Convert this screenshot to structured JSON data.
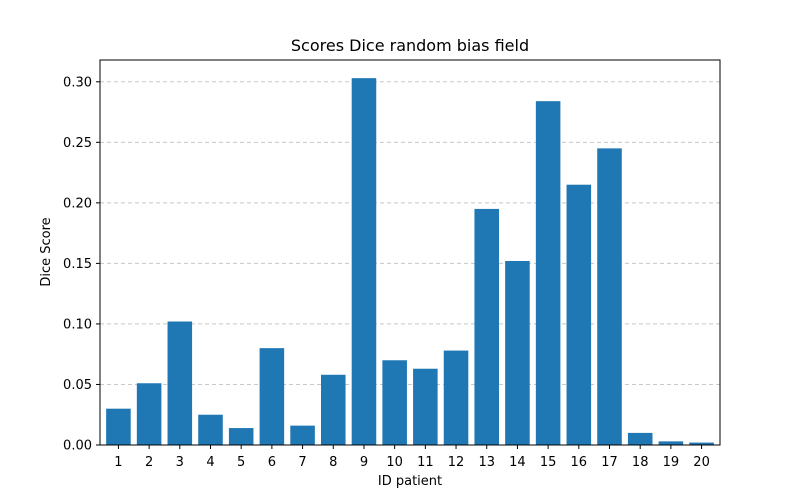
{
  "chart_data": {
    "type": "bar",
    "title": "Scores Dice random bias field",
    "xlabel": "ID patient",
    "ylabel": "Dice Score",
    "categories": [
      "1",
      "2",
      "3",
      "4",
      "5",
      "6",
      "7",
      "8",
      "9",
      "10",
      "11",
      "12",
      "13",
      "14",
      "15",
      "16",
      "17",
      "18",
      "19",
      "20"
    ],
    "values": [
      0.03,
      0.051,
      0.102,
      0.025,
      0.014,
      0.08,
      0.016,
      0.058,
      0.303,
      0.07,
      0.063,
      0.078,
      0.195,
      0.152,
      0.284,
      0.215,
      0.245,
      0.01,
      0.003,
      0.002
    ],
    "ylim": [
      0,
      0.318
    ],
    "yticks": [
      "0.00",
      "0.05",
      "0.10",
      "0.15",
      "0.20",
      "0.25",
      "0.30"
    ],
    "grid": "y-dashed",
    "bar_color": "#1f77b4",
    "grid_color": "#c8c8c8"
  }
}
